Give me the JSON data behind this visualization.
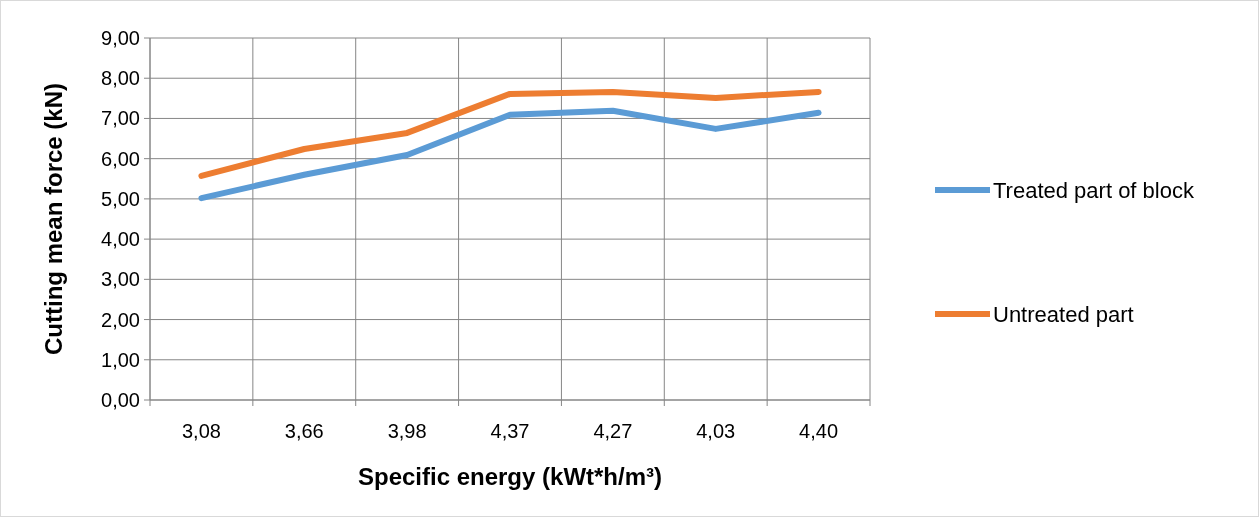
{
  "chart_data": {
    "type": "line",
    "xlabel": "Specific energy (kWt*h/m³)",
    "ylabel": "Cutting mean force (kN)",
    "categories": [
      "3,08",
      "3,66",
      "3,98",
      "4,37",
      "4,27",
      "4,03",
      "4,40"
    ],
    "series": [
      {
        "name": "Treated part of block",
        "color": "#5b9bd5",
        "values": [
          5.02,
          5.6,
          6.09,
          7.09,
          7.19,
          6.74,
          7.14
        ]
      },
      {
        "name": "Untreated part",
        "color": "#ed7d31",
        "values": [
          5.57,
          6.24,
          6.64,
          7.61,
          7.66,
          7.51,
          7.66
        ]
      }
    ],
    "ylim": [
      0,
      9
    ],
    "yticks": [
      {
        "value": 0,
        "label": "0,00"
      },
      {
        "value": 1,
        "label": "1,00"
      },
      {
        "value": 2,
        "label": "2,00"
      },
      {
        "value": 3,
        "label": "3,00"
      },
      {
        "value": 4,
        "label": "4,00"
      },
      {
        "value": 5,
        "label": "5,00"
      },
      {
        "value": 6,
        "label": "6,00"
      },
      {
        "value": 7,
        "label": "7,00"
      },
      {
        "value": 8,
        "label": "8,00"
      },
      {
        "value": 9,
        "label": "9,00"
      }
    ],
    "grid": true,
    "legend": "right",
    "marker": "none",
    "line_style": "solid"
  }
}
